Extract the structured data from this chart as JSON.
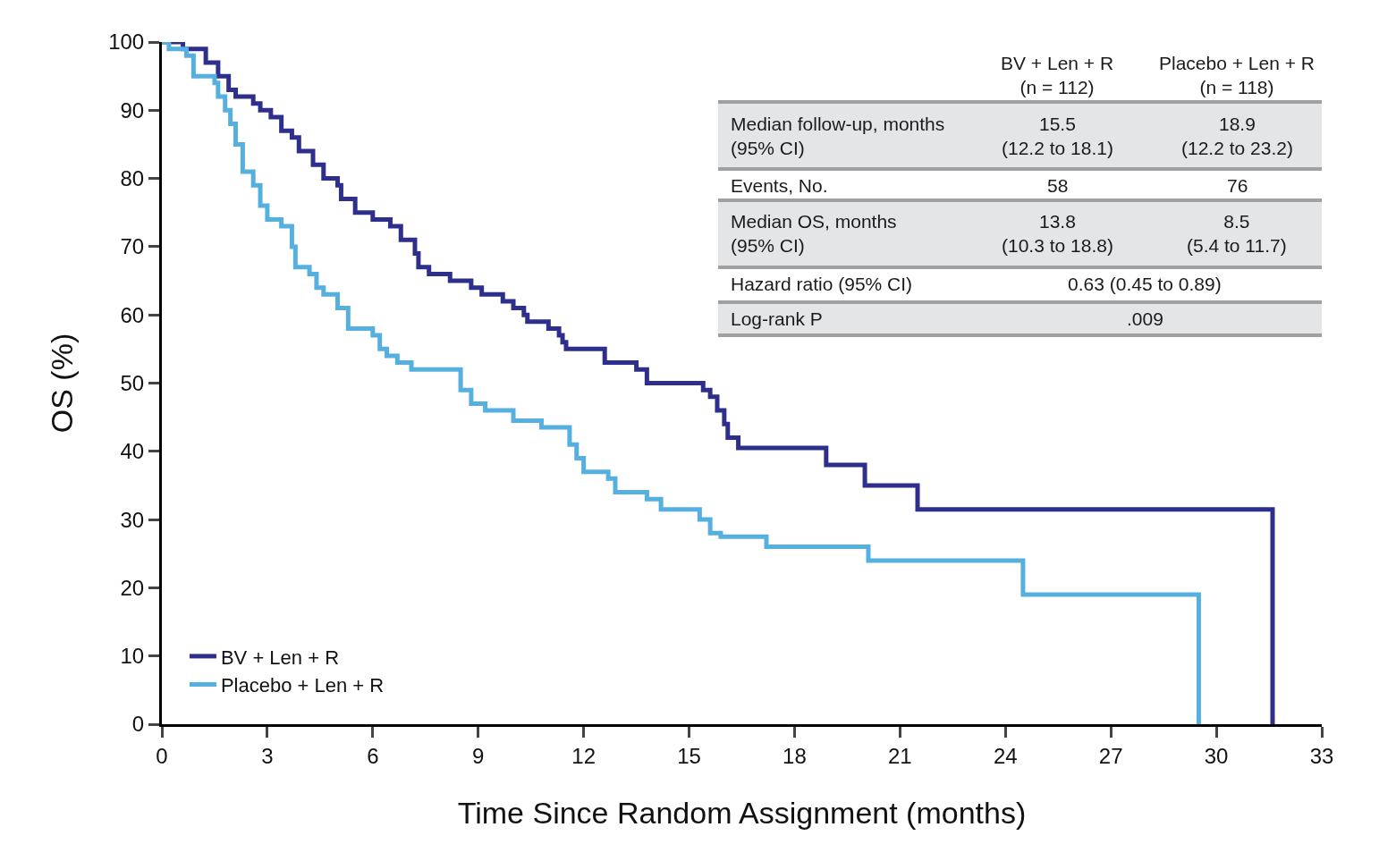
{
  "chart_data": {
    "type": "step",
    "xlabel": "Time Since Random Assignment (months)",
    "ylabel": "OS (%)",
    "xlim": [
      0,
      33
    ],
    "xticks": [
      0,
      3,
      6,
      9,
      12,
      15,
      18,
      21,
      24,
      27,
      30,
      33
    ],
    "ylim": [
      0,
      100
    ],
    "yticks": [
      0,
      10,
      20,
      30,
      40,
      50,
      60,
      70,
      80,
      90,
      100
    ],
    "grid": false,
    "legend": "bottom left",
    "marker": "none",
    "line_style": "solid",
    "series": [
      {
        "name": "BV + Len + R",
        "color": "#2e2e8c",
        "x": [
          0,
          0.6,
          1.25,
          1.6,
          1.9,
          2.1,
          2.6,
          2.8,
          3.1,
          3.4,
          3.7,
          3.9,
          4.3,
          4.6,
          5.0,
          5.1,
          5.5,
          6.0,
          6.5,
          6.8,
          7.2,
          7.3,
          7.6,
          8.2,
          8.8,
          9.1,
          9.7,
          10.0,
          10.3,
          10.4,
          11.0,
          11.3,
          11.4,
          11.5,
          12.6,
          13.5,
          13.8,
          15.4,
          15.6,
          15.8,
          16.0,
          16.1,
          16.4,
          18.9,
          20.0,
          21.5,
          31.6,
          31.6
        ],
        "values": [
          100,
          99,
          97,
          95,
          93,
          92,
          91,
          90,
          89,
          87,
          86,
          84,
          82,
          80,
          79,
          77,
          75,
          74,
          73,
          71,
          69,
          67,
          66,
          65,
          64,
          63,
          62,
          61,
          60,
          59,
          58,
          57,
          56,
          55,
          53,
          52,
          50,
          49,
          48,
          46,
          44,
          42,
          40.5,
          38,
          35,
          31.5,
          31.5,
          0
        ]
      },
      {
        "name": "Placebo + Len + R",
        "color": "#55b0e0",
        "x": [
          0,
          0.2,
          0.7,
          0.9,
          1.5,
          1.6,
          1.8,
          1.95,
          2.1,
          2.3,
          2.6,
          2.8,
          3.0,
          3.4,
          3.7,
          3.8,
          4.2,
          4.4,
          4.6,
          5.0,
          5.3,
          6.0,
          6.2,
          6.4,
          6.7,
          7.1,
          8.5,
          8.8,
          9.2,
          10.0,
          10.8,
          11.6,
          11.8,
          12.0,
          12.7,
          12.9,
          13.8,
          14.2,
          15.3,
          15.6,
          15.9,
          17.2,
          20.1,
          24.5,
          29.5,
          29.5
        ],
        "values": [
          100,
          99,
          98,
          95,
          94,
          92,
          90,
          88,
          85,
          81,
          79,
          76,
          74,
          73,
          70,
          67,
          66,
          64,
          63,
          61,
          58,
          57,
          55,
          54,
          53,
          52,
          49,
          47,
          46,
          44.5,
          43.5,
          41,
          39,
          37,
          36,
          34,
          33,
          31.5,
          30,
          28,
          27.5,
          26,
          24,
          19,
          19,
          0
        ]
      }
    ],
    "annotations": [
      "BV + Len + R\n(n = 112)",
      "Placebo + Len + R\n(n = 118)",
      "Median follow-up, months\n(95% CI)",
      "15.5\n(12.2 to 18.1)",
      "18.9\n(12.2 to 23.2)",
      "Events, No.",
      "58",
      "76",
      "Median OS, months\n(95% CI)",
      "13.8\n(10.3 to 18.8)",
      "8.5\n(5.4 to 11.7)",
      "Hazard ratio (95% CI)",
      "0.63 (0.45 to 0.89)",
      "Log-rank P",
      ".009"
    ]
  }
}
